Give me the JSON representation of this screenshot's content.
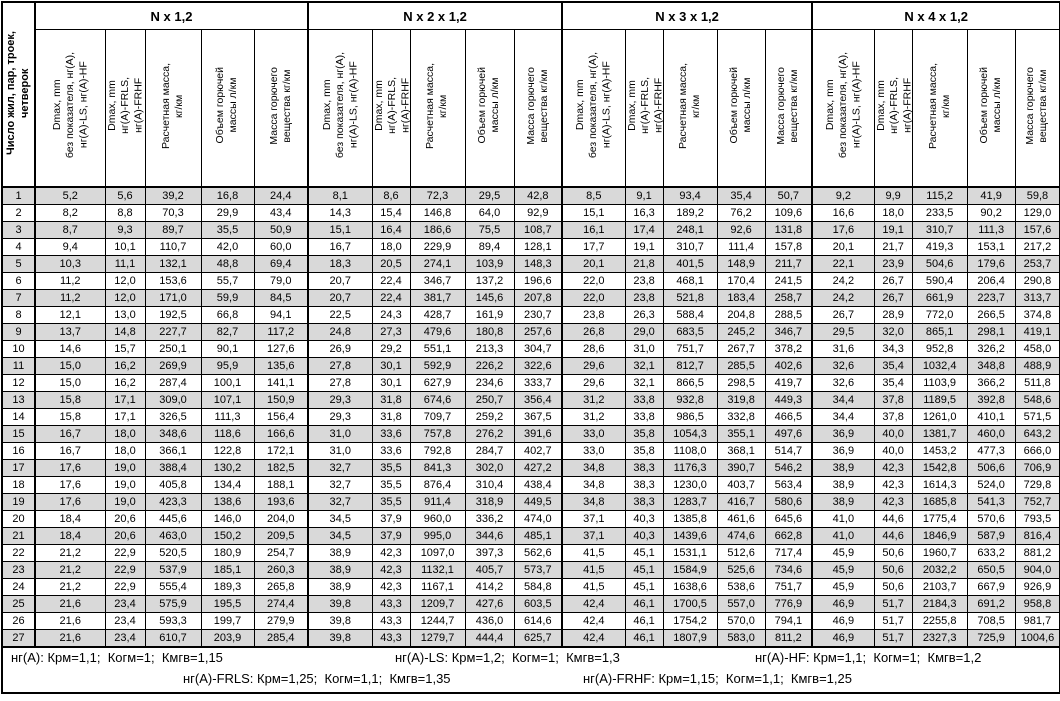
{
  "colors": {
    "row_alt": "#d9d9d9",
    "border": "#000000",
    "background": "#ffffff"
  },
  "table": {
    "row_header": "Число жил, пар, троек,\nчетверок",
    "groups": [
      {
        "label": "N x 1,2"
      },
      {
        "label": "N x 2 x 1,2"
      },
      {
        "label": "N x 3 x 1,2"
      },
      {
        "label": "N x 4 x 1,2"
      }
    ],
    "column_headers": [
      "Dmax, mm\nбез показателя, нг(А),\nнг(А)-LS, нг(А)-HF",
      "Dmax, mm\nнг(А)-FRLS,\nнг(А)-FRHF",
      "Расчетная масса,\nкг/км",
      "Объем горючей\nмассы л/км",
      "Масса горючего\nвещества кг/км"
    ],
    "rows": [
      {
        "n": "1",
        "values": [
          "5,2",
          "5,6",
          "39,2",
          "16,8",
          "24,4",
          "8,1",
          "8,6",
          "72,3",
          "29,5",
          "42,8",
          "8,5",
          "9,1",
          "93,4",
          "35,4",
          "50,7",
          "9,2",
          "9,9",
          "115,2",
          "41,9",
          "59,8"
        ]
      },
      {
        "n": "2",
        "values": [
          "8,2",
          "8,8",
          "70,3",
          "29,9",
          "43,4",
          "14,3",
          "15,4",
          "146,8",
          "64,0",
          "92,9",
          "15,1",
          "16,3",
          "189,2",
          "76,2",
          "109,6",
          "16,6",
          "18,0",
          "233,5",
          "90,2",
          "129,0"
        ]
      },
      {
        "n": "3",
        "values": [
          "8,7",
          "9,3",
          "89,7",
          "35,5",
          "50,9",
          "15,1",
          "16,4",
          "186,6",
          "75,5",
          "108,7",
          "16,1",
          "17,4",
          "248,1",
          "92,6",
          "131,8",
          "17,6",
          "19,1",
          "310,7",
          "111,3",
          "157,6"
        ]
      },
      {
        "n": "4",
        "values": [
          "9,4",
          "10,1",
          "110,7",
          "42,0",
          "60,0",
          "16,7",
          "18,0",
          "229,9",
          "89,4",
          "128,1",
          "17,7",
          "19,1",
          "310,7",
          "111,4",
          "157,8",
          "20,1",
          "21,7",
          "419,3",
          "153,1",
          "217,2"
        ]
      },
      {
        "n": "5",
        "values": [
          "10,3",
          "11,1",
          "132,1",
          "48,8",
          "69,4",
          "18,3",
          "20,5",
          "274,1",
          "103,9",
          "148,3",
          "20,1",
          "21,8",
          "401,5",
          "148,9",
          "211,7",
          "22,1",
          "23,9",
          "504,6",
          "179,6",
          "253,7"
        ]
      },
      {
        "n": "6",
        "values": [
          "11,2",
          "12,0",
          "153,6",
          "55,7",
          "79,0",
          "20,7",
          "22,4",
          "346,7",
          "137,2",
          "196,6",
          "22,0",
          "23,8",
          "468,1",
          "170,4",
          "241,5",
          "24,2",
          "26,7",
          "590,4",
          "206,4",
          "290,8"
        ]
      },
      {
        "n": "7",
        "values": [
          "11,2",
          "12,0",
          "171,0",
          "59,9",
          "84,5",
          "20,7",
          "22,4",
          "381,7",
          "145,6",
          "207,8",
          "22,0",
          "23,8",
          "521,8",
          "183,4",
          "258,7",
          "24,2",
          "26,7",
          "661,9",
          "223,7",
          "313,7"
        ]
      },
      {
        "n": "8",
        "values": [
          "12,1",
          "13,0",
          "192,5",
          "66,8",
          "94,1",
          "22,5",
          "24,3",
          "428,7",
          "161,9",
          "230,7",
          "23,8",
          "26,3",
          "588,4",
          "204,8",
          "288,5",
          "26,7",
          "28,9",
          "772,0",
          "266,5",
          "374,8"
        ]
      },
      {
        "n": "9",
        "values": [
          "13,7",
          "14,8",
          "227,7",
          "82,7",
          "117,2",
          "24,8",
          "27,3",
          "479,6",
          "180,8",
          "257,6",
          "26,8",
          "29,0",
          "683,5",
          "245,2",
          "346,7",
          "29,5",
          "32,0",
          "865,1",
          "298,1",
          "419,1"
        ]
      },
      {
        "n": "10",
        "values": [
          "14,6",
          "15,7",
          "250,1",
          "90,1",
          "127,6",
          "26,9",
          "29,2",
          "551,1",
          "213,3",
          "304,7",
          "28,6",
          "31,0",
          "751,7",
          "267,7",
          "378,2",
          "31,6",
          "34,3",
          "952,8",
          "326,2",
          "458,0"
        ]
      },
      {
        "n": "11",
        "values": [
          "15,0",
          "16,2",
          "269,9",
          "95,9",
          "135,6",
          "27,8",
          "30,1",
          "592,9",
          "226,2",
          "322,6",
          "29,6",
          "32,1",
          "812,7",
          "285,5",
          "402,6",
          "32,6",
          "35,4",
          "1032,4",
          "348,8",
          "488,9"
        ]
      },
      {
        "n": "12",
        "values": [
          "15,0",
          "16,2",
          "287,4",
          "100,1",
          "141,1",
          "27,8",
          "30,1",
          "627,9",
          "234,6",
          "333,7",
          "29,6",
          "32,1",
          "866,5",
          "298,5",
          "419,7",
          "32,6",
          "35,4",
          "1103,9",
          "366,2",
          "511,8"
        ]
      },
      {
        "n": "13",
        "values": [
          "15,8",
          "17,1",
          "309,0",
          "107,1",
          "150,9",
          "29,3",
          "31,8",
          "674,6",
          "250,7",
          "356,4",
          "31,2",
          "33,8",
          "932,8",
          "319,8",
          "449,3",
          "34,4",
          "37,8",
          "1189,5",
          "392,8",
          "548,6"
        ]
      },
      {
        "n": "14",
        "values": [
          "15,8",
          "17,1",
          "326,5",
          "111,3",
          "156,4",
          "29,3",
          "31,8",
          "709,7",
          "259,2",
          "367,5",
          "31,2",
          "33,8",
          "986,5",
          "332,8",
          "466,5",
          "34,4",
          "37,8",
          "1261,0",
          "410,1",
          "571,5"
        ]
      },
      {
        "n": "15",
        "values": [
          "16,7",
          "18,0",
          "348,6",
          "118,6",
          "166,6",
          "31,0",
          "33,6",
          "757,8",
          "276,2",
          "391,6",
          "33,0",
          "35,8",
          "1054,3",
          "355,1",
          "497,6",
          "36,9",
          "40,0",
          "1381,7",
          "460,0",
          "643,2"
        ]
      },
      {
        "n": "16",
        "values": [
          "16,7",
          "18,0",
          "366,1",
          "122,8",
          "172,1",
          "31,0",
          "33,6",
          "792,8",
          "284,7",
          "402,7",
          "33,0",
          "35,8",
          "1108,0",
          "368,1",
          "514,7",
          "36,9",
          "40,0",
          "1453,2",
          "477,3",
          "666,0"
        ]
      },
      {
        "n": "17",
        "values": [
          "17,6",
          "19,0",
          "388,4",
          "130,2",
          "182,5",
          "32,7",
          "35,5",
          "841,3",
          "302,0",
          "427,2",
          "34,8",
          "38,3",
          "1176,3",
          "390,7",
          "546,2",
          "38,9",
          "42,3",
          "1542,8",
          "506,6",
          "706,9"
        ]
      },
      {
        "n": "18",
        "values": [
          "17,6",
          "19,0",
          "405,8",
          "134,4",
          "188,1",
          "32,7",
          "35,5",
          "876,4",
          "310,4",
          "438,4",
          "34,8",
          "38,3",
          "1230,0",
          "403,7",
          "563,4",
          "38,9",
          "42,3",
          "1614,3",
          "524,0",
          "729,8"
        ]
      },
      {
        "n": "19",
        "values": [
          "17,6",
          "19,0",
          "423,3",
          "138,6",
          "193,6",
          "32,7",
          "35,5",
          "911,4",
          "318,9",
          "449,5",
          "34,8",
          "38,3",
          "1283,7",
          "416,7",
          "580,6",
          "38,9",
          "42,3",
          "1685,8",
          "541,3",
          "752,7"
        ]
      },
      {
        "n": "20",
        "values": [
          "18,4",
          "20,6",
          "445,6",
          "146,0",
          "204,0",
          "34,5",
          "37,9",
          "960,0",
          "336,2",
          "474,0",
          "37,1",
          "40,3",
          "1385,8",
          "461,6",
          "645,6",
          "41,0",
          "44,6",
          "1775,4",
          "570,6",
          "793,5"
        ]
      },
      {
        "n": "21",
        "values": [
          "18,4",
          "20,6",
          "463,0",
          "150,2",
          "209,5",
          "34,5",
          "37,9",
          "995,0",
          "344,6",
          "485,1",
          "37,1",
          "40,3",
          "1439,6",
          "474,6",
          "662,8",
          "41,0",
          "44,6",
          "1846,9",
          "587,9",
          "816,4"
        ]
      },
      {
        "n": "22",
        "values": [
          "21,2",
          "22,9",
          "520,5",
          "180,9",
          "254,7",
          "38,9",
          "42,3",
          "1097,0",
          "397,3",
          "562,6",
          "41,5",
          "45,1",
          "1531,1",
          "512,6",
          "717,4",
          "45,9",
          "50,6",
          "1960,7",
          "633,2",
          "881,2"
        ]
      },
      {
        "n": "23",
        "values": [
          "21,2",
          "22,9",
          "537,9",
          "185,1",
          "260,3",
          "38,9",
          "42,3",
          "1132,1",
          "405,7",
          "573,7",
          "41,5",
          "45,1",
          "1584,9",
          "525,6",
          "734,6",
          "45,9",
          "50,6",
          "2032,2",
          "650,5",
          "904,0"
        ]
      },
      {
        "n": "24",
        "values": [
          "21,2",
          "22,9",
          "555,4",
          "189,3",
          "265,8",
          "38,9",
          "42,3",
          "1167,1",
          "414,2",
          "584,8",
          "41,5",
          "45,1",
          "1638,6",
          "538,6",
          "751,7",
          "45,9",
          "50,6",
          "2103,7",
          "667,9",
          "926,9"
        ]
      },
      {
        "n": "25",
        "values": [
          "21,6",
          "23,4",
          "575,9",
          "195,5",
          "274,4",
          "39,8",
          "43,3",
          "1209,7",
          "427,6",
          "603,5",
          "42,4",
          "46,1",
          "1700,5",
          "557,0",
          "776,9",
          "46,9",
          "51,7",
          "2184,3",
          "691,2",
          "958,8"
        ]
      },
      {
        "n": "26",
        "values": [
          "21,6",
          "23,4",
          "593,3",
          "199,7",
          "279,9",
          "39,8",
          "43,3",
          "1244,7",
          "436,0",
          "614,6",
          "42,4",
          "46,1",
          "1754,2",
          "570,0",
          "794,1",
          "46,9",
          "51,7",
          "2255,8",
          "708,5",
          "981,7"
        ]
      },
      {
        "n": "27",
        "values": [
          "21,6",
          "23,4",
          "610,7",
          "203,9",
          "285,4",
          "39,8",
          "43,3",
          "1279,7",
          "444,4",
          "625,7",
          "42,4",
          "46,1",
          "1807,9",
          "583,0",
          "811,2",
          "46,9",
          "51,7",
          "2327,3",
          "725,9",
          "1004,6"
        ]
      }
    ]
  },
  "footnotes": {
    "line1": [
      "нг(А): Крм=1,1;  Когм=1;  Кмгв=1,15",
      "нг(А)-LS: Крм=1,2;  Когм=1;  Кмгв=1,3",
      "нг(А)-HF: Крм=1,1;  Когм=1;  Кмгв=1,2"
    ],
    "line2": [
      "нг(А)-FRLS: Крм=1,25;  Когм=1,1;  Кмгв=1,35",
      "нг(А)-FRHF: Крм=1,15;  Когм=1,1;  Кмгв=1,25"
    ]
  }
}
